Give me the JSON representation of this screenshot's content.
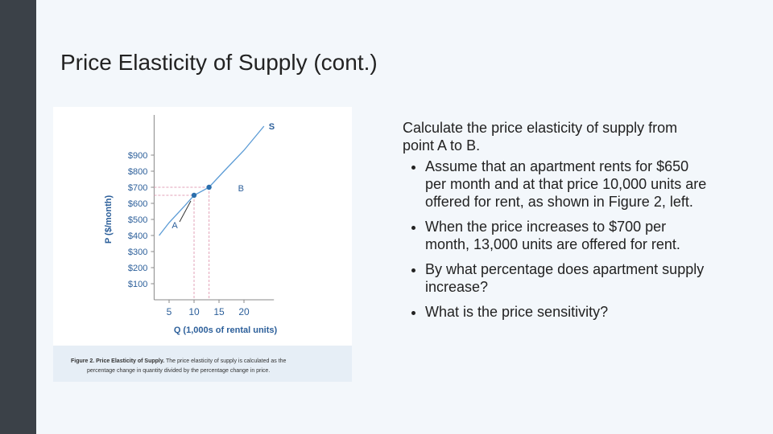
{
  "slide": {
    "title": "Price Elasticity of Supply (cont.)",
    "intro": "Calculate the price elasticity of supply from point A to B.",
    "bullets": [
      "Assume that an apartment rents for $650 per month and at that price 10,000 units are offered for rent, as shown in Figure 2, left.",
      "When the price increases to $700 per month, 13,000 units are offered for rent.",
      "By what percentage does apartment supply increase?",
      "What is the price sensitivity?"
    ]
  },
  "figure": {
    "chart_data": {
      "type": "line",
      "x_label": "Q (1,000s of rental units)",
      "y_label": "P ($/month)",
      "xlim": [
        2,
        26
      ],
      "ylim": [
        0,
        1150
      ],
      "xticks": [
        5,
        10,
        15,
        20
      ],
      "yticks": [
        {
          "value": 100,
          "label": "$100"
        },
        {
          "value": 200,
          "label": "$200"
        },
        {
          "value": 300,
          "label": "$300"
        },
        {
          "value": 400,
          "label": "$400"
        },
        {
          "value": 500,
          "label": "$500"
        },
        {
          "value": 600,
          "label": "$600"
        },
        {
          "value": 700,
          "label": "$700"
        },
        {
          "value": 800,
          "label": "$800"
        },
        {
          "value": 900,
          "label": "$900"
        }
      ],
      "series": [
        {
          "name": "S",
          "color": "#5b9bd5",
          "x": [
            3,
            5,
            8,
            10,
            13,
            16,
            20,
            24
          ],
          "values": [
            400,
            480,
            580,
            650,
            700,
            800,
            930,
            1080
          ]
        }
      ],
      "points": [
        {
          "label": "A",
          "x": 10,
          "y": 650
        },
        {
          "label": "B",
          "x": 13,
          "y": 700
        }
      ],
      "point_color": "#2c6fad"
    },
    "caption": {
      "title": "Figure 2. Price Elasticity of Supply.",
      "lines": [
        "The price elasticity of supply is calculated as the",
        "percentage change in quantity divided by the percentage change in price."
      ]
    }
  }
}
